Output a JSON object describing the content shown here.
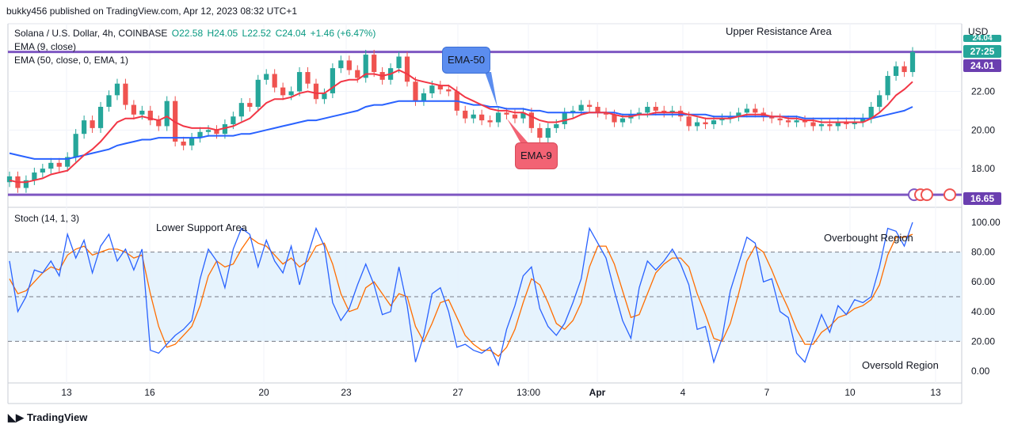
{
  "header": {
    "publisher_line": "bukky456 published on TradingView.com, Apr 12, 2023 08:32 UTC+1"
  },
  "legend": {
    "symbol": "Solana / U.S. Dollar, 4h, COINBASE",
    "open": "O22.58",
    "high": "H24.05",
    "low": "L22.52",
    "close": "C24.04",
    "change": "+1.46 (+6.47%)",
    "ema9": "EMA (9, close)",
    "ema50": "EMA (50, close, 0, EMA, 1)",
    "stoch": "Stoch (14, 1, 3)"
  },
  "axis": {
    "currency": "USD",
    "price_ticks": [
      "22.00",
      "20.00",
      "18.00"
    ],
    "stoch_ticks": [
      "100.00",
      "80.00",
      "60.00",
      "40.00",
      "20.00",
      "0.00"
    ],
    "time_ticks": [
      "13",
      "16",
      "20",
      "23",
      "27",
      "13:00",
      "Apr",
      "4",
      "7",
      "10",
      "13"
    ]
  },
  "price_tags": {
    "top_partial": "24.04",
    "countdown": "27:25",
    "last_price": "24.01",
    "support_level": "16.65"
  },
  "annotations": {
    "upper_resistance": "Upper Resistance Area",
    "lower_support": "Lower Support Area",
    "overbought": "Overbought Region",
    "oversold": "Oversold Region",
    "ema50_callout": "EMA-50",
    "ema9_callout": "EMA-9"
  },
  "footer": {
    "brand": "TradingView"
  },
  "colors": {
    "up": "#26a69a",
    "down": "#ef5350",
    "ema9": "#f23645",
    "ema50": "#2962ff",
    "level": "#7e57c2",
    "stoch_k": "#2962ff",
    "stoch_d": "#ff6d00",
    "band": "#e3f2fd"
  },
  "chart_data": {
    "type": "candlestick",
    "title": "Solana / U.S. Dollar, 4h, COINBASE",
    "price_ylim": [
      16.0,
      25.5
    ],
    "resistance_level": 24.04,
    "support_level": 16.65,
    "close_series": [
      17.6,
      17.0,
      17.4,
      17.8,
      18.0,
      18.3,
      18.1,
      18.6,
      19.8,
      20.5,
      20.1,
      21.2,
      21.8,
      22.4,
      21.3,
      20.8,
      21.0,
      20.5,
      20.2,
      21.5,
      19.4,
      19.2,
      19.6,
      19.9,
      20.0,
      19.8,
      20.3,
      20.7,
      21.4,
      21.2,
      22.6,
      22.9,
      22.2,
      21.8,
      22.0,
      23.0,
      22.4,
      21.6,
      21.9,
      23.2,
      23.6,
      23.1,
      22.7,
      23.9,
      23.0,
      22.6,
      23.2,
      23.8,
      22.5,
      21.5,
      21.9,
      22.3,
      22.1,
      22.0,
      21.0,
      20.6,
      20.8,
      20.5,
      20.4,
      20.9,
      20.8,
      20.6,
      20.9,
      20.1,
      19.6,
      20.1,
      20.3,
      20.9,
      21.0,
      21.3,
      21.2,
      20.9,
      20.8,
      20.4,
      20.6,
      20.8,
      20.9,
      21.2,
      21.0,
      20.9,
      21.0,
      20.7,
      20.2,
      20.4,
      20.3,
      20.5,
      20.6,
      20.7,
      20.9,
      21.1,
      20.9,
      20.7,
      20.6,
      20.5,
      20.4,
      20.5,
      20.4,
      20.2,
      20.3,
      20.2,
      20.4,
      20.3,
      20.4,
      20.6,
      21.2,
      21.8,
      22.8,
      23.3,
      23.0,
      24.04
    ],
    "ema9": [
      17.4,
      17.3,
      17.3,
      17.4,
      17.5,
      17.7,
      17.8,
      17.9,
      18.3,
      18.7,
      19.0,
      19.4,
      19.9,
      20.4,
      20.6,
      20.6,
      20.7,
      20.6,
      20.5,
      20.7,
      20.4,
      20.2,
      20.1,
      20.1,
      20.1,
      20.0,
      20.1,
      20.2,
      20.4,
      20.6,
      21.0,
      21.4,
      21.6,
      21.6,
      21.7,
      21.9,
      22.0,
      21.9,
      21.9,
      22.2,
      22.5,
      22.6,
      22.6,
      22.9,
      22.9,
      22.8,
      22.9,
      23.1,
      22.9,
      22.6,
      22.5,
      22.4,
      22.3,
      22.3,
      22.0,
      21.7,
      21.5,
      21.3,
      21.1,
      21.0,
      21.0,
      20.9,
      20.9,
      20.7,
      20.5,
      20.4,
      20.4,
      20.5,
      20.6,
      20.8,
      20.9,
      20.9,
      20.9,
      20.8,
      20.7,
      20.7,
      20.8,
      20.8,
      20.9,
      20.9,
      20.9,
      20.9,
      20.8,
      20.7,
      20.6,
      20.6,
      20.6,
      20.6,
      20.7,
      20.8,
      20.8,
      20.8,
      20.7,
      20.7,
      20.6,
      20.6,
      20.5,
      20.5,
      20.4,
      20.4,
      20.4,
      20.4,
      20.4,
      20.4,
      20.6,
      20.9,
      21.3,
      21.8,
      22.1,
      22.5
    ],
    "ema50": [
      18.8,
      18.7,
      18.6,
      18.5,
      18.5,
      18.5,
      18.5,
      18.5,
      18.6,
      18.7,
      18.8,
      18.9,
      19.0,
      19.2,
      19.3,
      19.4,
      19.5,
      19.5,
      19.6,
      19.6,
      19.6,
      19.6,
      19.6,
      19.6,
      19.7,
      19.7,
      19.7,
      19.7,
      19.8,
      19.8,
      19.9,
      20.0,
      20.1,
      20.2,
      20.3,
      20.4,
      20.5,
      20.5,
      20.6,
      20.7,
      20.8,
      20.9,
      21.0,
      21.2,
      21.3,
      21.3,
      21.4,
      21.5,
      21.5,
      21.5,
      21.5,
      21.5,
      21.5,
      21.5,
      21.5,
      21.4,
      21.3,
      21.3,
      21.2,
      21.2,
      21.1,
      21.1,
      21.1,
      21.0,
      21.0,
      20.9,
      20.9,
      20.9,
      20.9,
      20.9,
      20.9,
      20.9,
      20.9,
      20.9,
      20.8,
      20.8,
      20.8,
      20.8,
      20.8,
      20.8,
      20.8,
      20.8,
      20.8,
      20.8,
      20.8,
      20.7,
      20.7,
      20.7,
      20.7,
      20.7,
      20.7,
      20.7,
      20.7,
      20.7,
      20.7,
      20.7,
      20.6,
      20.6,
      20.6,
      20.6,
      20.6,
      20.6,
      20.6,
      20.6,
      20.6,
      20.7,
      20.8,
      20.9,
      21.0,
      21.2
    ],
    "stoch_ylim": [
      -8,
      108
    ],
    "stoch_ticks": [
      100,
      80,
      60,
      40,
      20,
      0
    ],
    "stoch_k": [
      74,
      40,
      50,
      68,
      66,
      74,
      64,
      92,
      76,
      88,
      66,
      84,
      92,
      74,
      82,
      68,
      82,
      14,
      12,
      18,
      24,
      28,
      34,
      62,
      82,
      74,
      56,
      82,
      96,
      92,
      70,
      88,
      74,
      66,
      84,
      58,
      78,
      96,
      84,
      46,
      34,
      42,
      58,
      72,
      58,
      38,
      40,
      70,
      44,
      6,
      24,
      52,
      56,
      40,
      16,
      18,
      14,
      12,
      16,
      4,
      28,
      44,
      64,
      70,
      42,
      30,
      24,
      32,
      46,
      62,
      96,
      86,
      76,
      54,
      34,
      22,
      56,
      74,
      68,
      74,
      82,
      72,
      58,
      28,
      30,
      6,
      22,
      54,
      72,
      90,
      86,
      60,
      62,
      40,
      36,
      12,
      6,
      22,
      38,
      26,
      44,
      38,
      48,
      46,
      50,
      70,
      96,
      94,
      84,
      100
    ],
    "stoch_d": [
      62,
      52,
      54,
      60,
      66,
      70,
      68,
      78,
      82,
      84,
      78,
      80,
      82,
      82,
      80,
      76,
      78,
      52,
      30,
      16,
      18,
      24,
      30,
      44,
      64,
      74,
      70,
      72,
      82,
      90,
      86,
      84,
      78,
      72,
      76,
      70,
      74,
      84,
      86,
      72,
      52,
      40,
      42,
      56,
      60,
      52,
      44,
      52,
      50,
      30,
      20,
      32,
      46,
      48,
      36,
      24,
      18,
      14,
      14,
      10,
      16,
      28,
      46,
      62,
      58,
      46,
      32,
      28,
      34,
      46,
      70,
      84,
      84,
      72,
      54,
      36,
      38,
      52,
      66,
      72,
      76,
      76,
      70,
      52,
      38,
      22,
      20,
      32,
      52,
      74,
      84,
      80,
      68,
      54,
      42,
      28,
      18,
      18,
      26,
      30,
      36,
      38,
      42,
      44,
      48,
      58,
      78,
      90,
      90,
      92
    ],
    "stoch_band": [
      20,
      80
    ],
    "stoch_midline": 50
  }
}
